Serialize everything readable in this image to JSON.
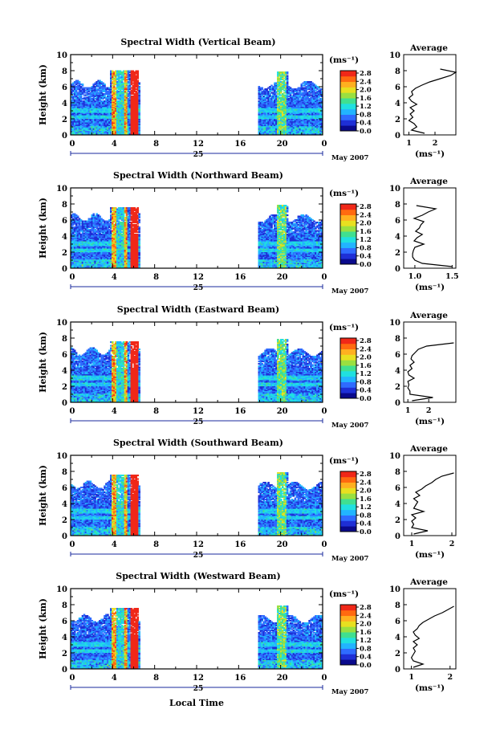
{
  "figure": {
    "xlabel": "Local Time",
    "date_label": "May 2007",
    "day_label": "25",
    "colorbar_unit": "(ms⁻¹)",
    "colorbar_ticks": [
      "0.0",
      "0.4",
      "0.8",
      "1.2",
      "1.6",
      "2.0",
      "2.4",
      "2.8"
    ],
    "colormap": [
      "#0a0a8c",
      "#1e2fd6",
      "#2f6bff",
      "#22b4ff",
      "#20e0e0",
      "#40e090",
      "#9ae040",
      "#e8e020",
      "#ffb020",
      "#ff6a10",
      "#f02818"
    ],
    "avg_title": "Average",
    "avg_xlabel": "(ms⁻¹)"
  },
  "chart_data": [
    {
      "type": "heatmap",
      "title": "Spectral Width (Vertical Beam)",
      "ylabel": "Height (km)",
      "xlim": [
        0,
        24
      ],
      "ylim": [
        0,
        10
      ],
      "xticks": [
        "0",
        "4",
        "8",
        "12",
        "16",
        "20",
        "0"
      ],
      "yticks": [
        "0",
        "2",
        "4",
        "6",
        "8",
        "10"
      ],
      "color_range": [
        0,
        2.8
      ],
      "avg_profile": {
        "xlim": [
          0.8,
          2.8
        ],
        "xticks": [
          "1",
          "2"
        ],
        "xtick_values": [
          1,
          2
        ],
        "height": [
          0.2,
          0.6,
          1.0,
          1.4,
          1.8,
          2.2,
          2.6,
          3.0,
          3.4,
          3.8,
          4.2,
          4.6,
          5.0,
          5.4,
          5.8,
          6.2,
          6.6,
          7.0,
          7.4,
          7.8,
          8.2
        ],
        "width": [
          1.6,
          1.1,
          1.3,
          1.2,
          1.0,
          1.15,
          1.05,
          1.2,
          1.05,
          1.3,
          1.1,
          1.0,
          1.15,
          1.1,
          1.25,
          1.5,
          1.8,
          2.2,
          2.6,
          2.8,
          2.2
        ]
      }
    },
    {
      "type": "heatmap",
      "title": "Spectral Width (Northward Beam)",
      "ylabel": "Height (km)",
      "xlim": [
        0,
        24
      ],
      "ylim": [
        0,
        10
      ],
      "xticks": [
        "0",
        "4",
        "8",
        "12",
        "16",
        "20",
        "0"
      ],
      "yticks": [
        "0",
        "2",
        "4",
        "6",
        "8",
        "10"
      ],
      "color_range": [
        0,
        2.8
      ],
      "avg_profile": {
        "xlim": [
          0.85,
          1.55
        ],
        "xticks": [
          "1.0",
          "1.5"
        ],
        "xtick_values": [
          1.0,
          1.5
        ],
        "height": [
          0.2,
          0.6,
          1.0,
          1.4,
          1.8,
          2.2,
          2.6,
          3.0,
          3.4,
          3.8,
          4.2,
          4.6,
          5.0,
          5.4,
          5.8,
          6.2,
          6.6,
          7.0,
          7.4,
          7.8
        ],
        "width": [
          1.5,
          1.1,
          1.0,
          0.97,
          0.97,
          0.98,
          1.0,
          1.12,
          0.99,
          1.03,
          1.1,
          1.01,
          1.06,
          1.08,
          1.12,
          0.99,
          1.1,
          1.18,
          1.28,
          1.02
        ]
      }
    },
    {
      "type": "heatmap",
      "title": "Spectral Width (Eastward Beam)",
      "ylabel": "Height (km)",
      "xlim": [
        0,
        24
      ],
      "ylim": [
        0,
        10
      ],
      "xticks": [
        "0",
        "4",
        "8",
        "12",
        "16",
        "20",
        "0"
      ],
      "yticks": [
        "0",
        "2",
        "4",
        "6",
        "8",
        "10"
      ],
      "color_range": [
        0,
        2.8
      ],
      "avg_profile": {
        "xlim": [
          0.8,
          3.3
        ],
        "xticks": [
          "1",
          "2"
        ],
        "xtick_values": [
          1,
          2
        ],
        "height": [
          0.2,
          0.6,
          1.0,
          1.4,
          1.8,
          2.2,
          2.6,
          3.0,
          3.4,
          3.8,
          4.2,
          4.6,
          5.0,
          5.4,
          5.8,
          6.2,
          6.6,
          7.0,
          7.4
        ],
        "width": [
          1.2,
          2.2,
          1.1,
          1.1,
          1.0,
          1.05,
          1.0,
          1.3,
          1.05,
          1.0,
          1.2,
          1.1,
          1.3,
          1.15,
          1.2,
          1.35,
          1.5,
          1.9,
          3.2
        ]
      }
    },
    {
      "type": "heatmap",
      "title": "Spectral Width (Southward Beam)",
      "ylabel": "Height (km)",
      "xlim": [
        0,
        24
      ],
      "ylim": [
        0,
        10
      ],
      "xticks": [
        "0",
        "4",
        "8",
        "12",
        "16",
        "20",
        "0"
      ],
      "yticks": [
        "0",
        "2",
        "4",
        "6",
        "8",
        "10"
      ],
      "color_range": [
        0,
        2.8
      ],
      "avg_profile": {
        "xlim": [
          0.8,
          2.1
        ],
        "xticks": [
          "1",
          "2"
        ],
        "xtick_values": [
          1,
          2
        ],
        "height": [
          0.2,
          0.6,
          1.0,
          1.4,
          1.8,
          2.2,
          2.6,
          3.0,
          3.4,
          3.8,
          4.2,
          4.6,
          5.0,
          5.4,
          5.8,
          6.2,
          6.6,
          7.0,
          7.4,
          7.8
        ],
        "width": [
          1.05,
          1.4,
          1.0,
          1.05,
          1.0,
          1.1,
          1.0,
          1.3,
          1.05,
          1.1,
          1.15,
          1.05,
          1.2,
          1.1,
          1.25,
          1.35,
          1.5,
          1.6,
          1.75,
          2.05
        ]
      }
    },
    {
      "type": "heatmap",
      "title": "Spectral Width (Westward Beam)",
      "ylabel": "Height (km)",
      "xlim": [
        0,
        24
      ],
      "ylim": [
        0,
        10
      ],
      "xticks": [
        "0",
        "4",
        "8",
        "12",
        "16",
        "20",
        "0"
      ],
      "yticks": [
        "0",
        "2",
        "4",
        "6",
        "8",
        "10"
      ],
      "color_range": [
        0,
        2.8
      ],
      "avg_profile": {
        "xlim": [
          0.8,
          2.15
        ],
        "xticks": [
          "1",
          "2"
        ],
        "xtick_values": [
          1,
          2
        ],
        "height": [
          0.2,
          0.6,
          1.0,
          1.4,
          1.8,
          2.2,
          2.6,
          3.0,
          3.4,
          3.8,
          4.2,
          4.6,
          5.0,
          5.4,
          5.8,
          6.2,
          6.6,
          7.0,
          7.4,
          7.8
        ],
        "width": [
          1.05,
          1.3,
          1.05,
          1.0,
          1.05,
          1.1,
          1.05,
          1.15,
          1.05,
          1.2,
          1.1,
          1.05,
          1.15,
          1.2,
          1.3,
          1.45,
          1.6,
          1.8,
          1.95,
          2.1
        ]
      }
    }
  ]
}
